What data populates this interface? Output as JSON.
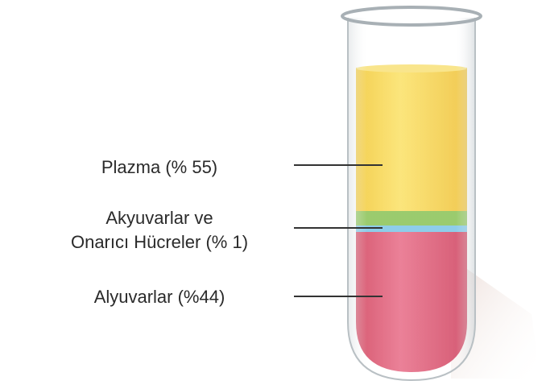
{
  "layers": [
    {
      "label_lines": [
        "Plazma (% 55)"
      ]
    },
    {
      "label_lines": [
        "Akyuvarlar ve",
        "Onarıcı Hücreler (% 1)"
      ]
    },
    {
      "label_lines": [
        "Alyuvarlar (%44)"
      ]
    }
  ]
}
